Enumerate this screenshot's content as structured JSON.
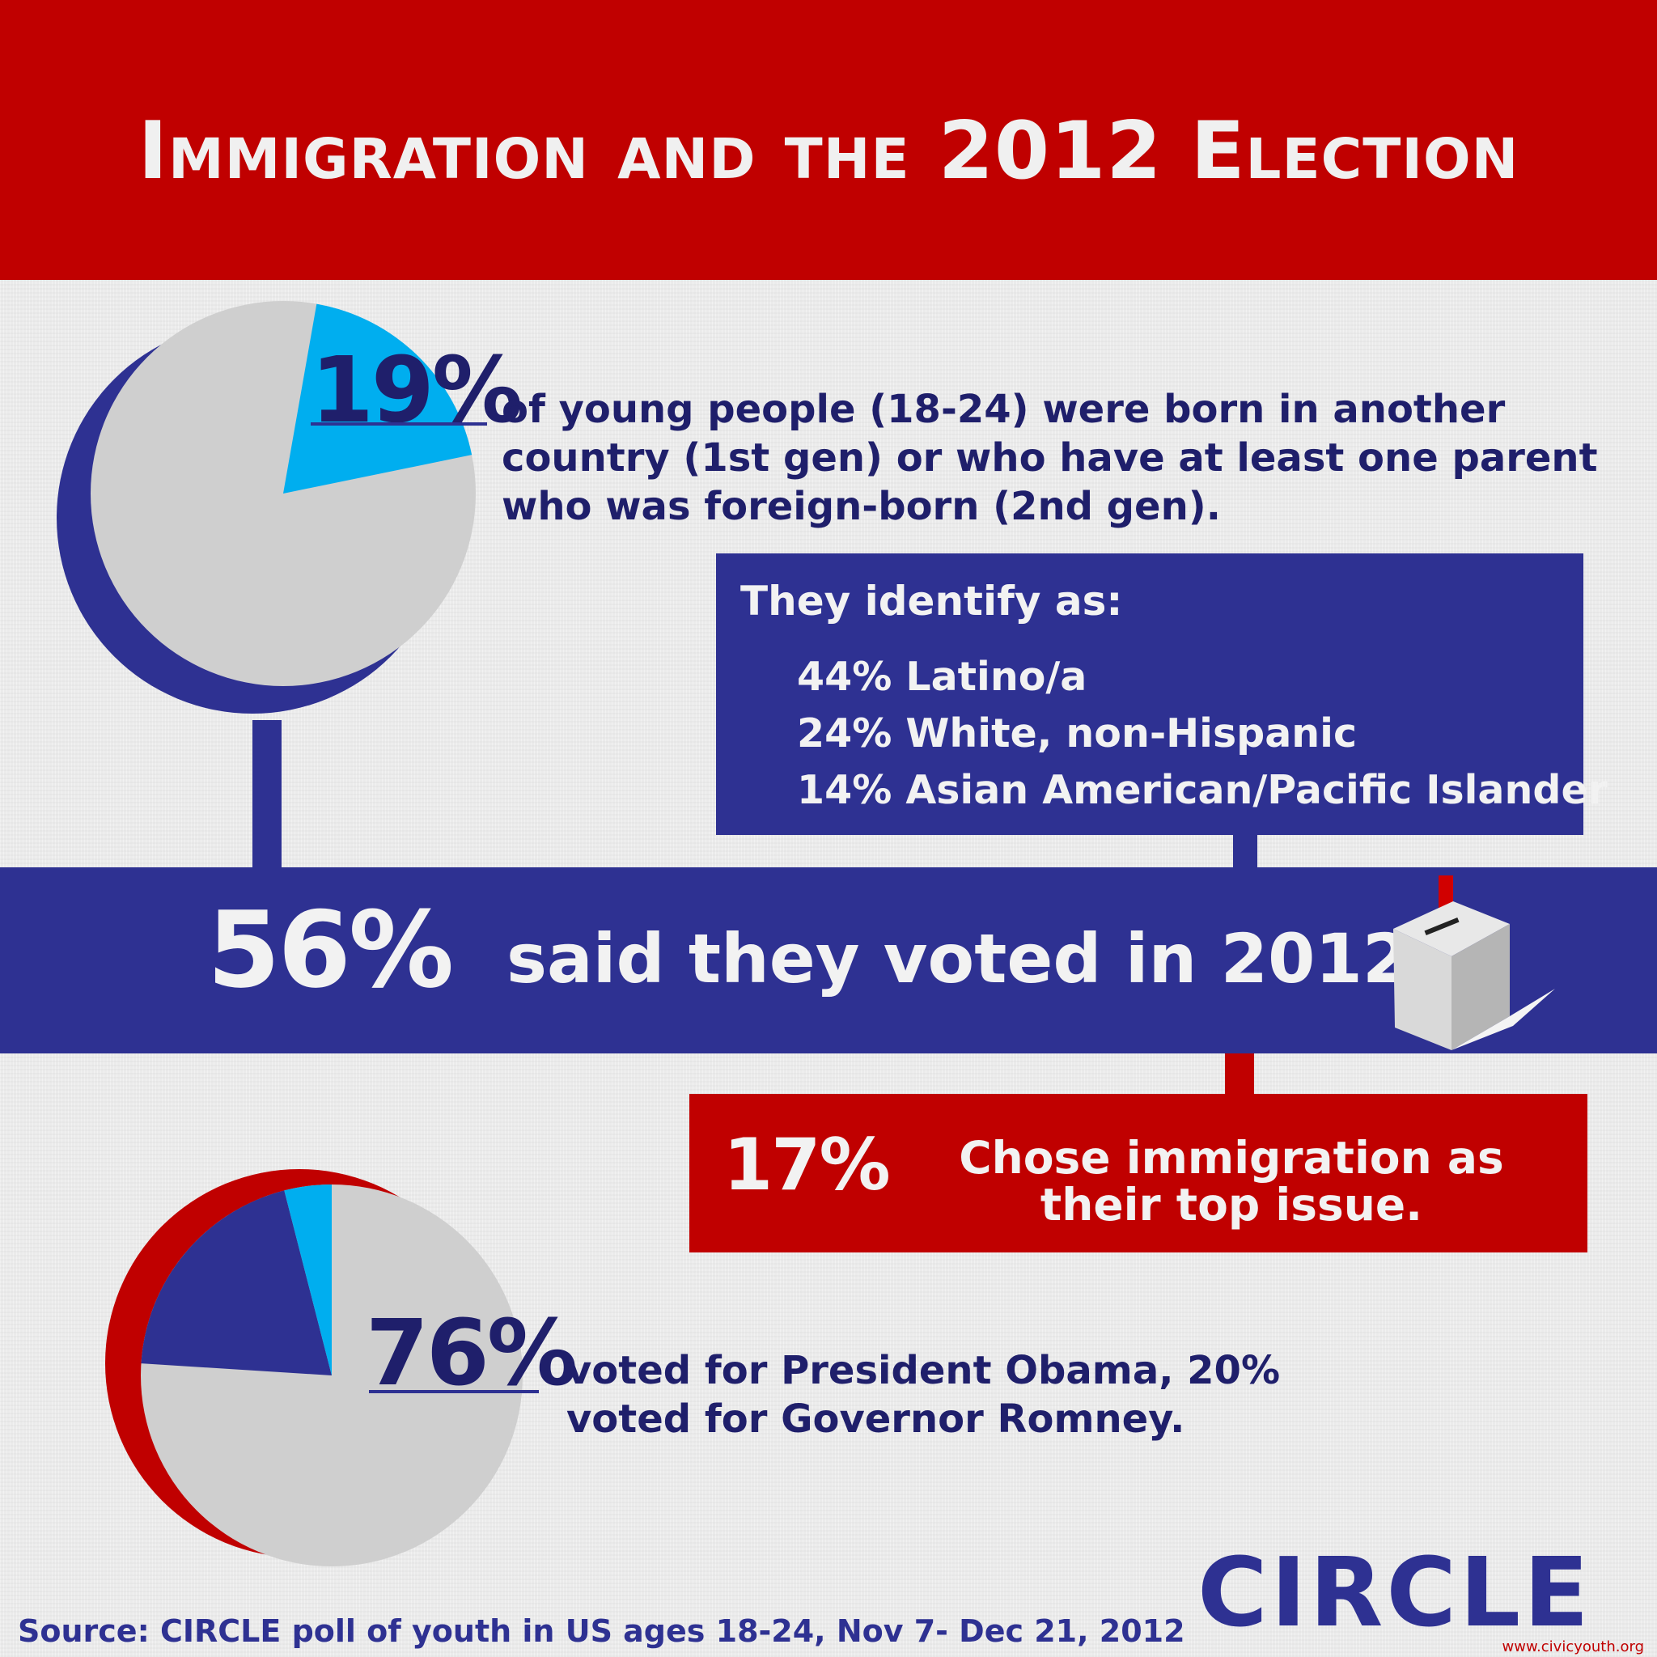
{
  "title": "Immigration and the 2012 Election",
  "colors": {
    "red": "#c00000",
    "navy": "#2e3192",
    "light_blue": "#00aeef",
    "pie_grey": "#cfcfcf",
    "text_navy": "#1f1f6b"
  },
  "section1": {
    "percent": "19%",
    "text": "of young people (18-24) were born in another country (1st gen) or who have at least one parent who was foreign-born (2nd gen).",
    "pie_fraction": 0.19
  },
  "identity": {
    "title": "They identify as:",
    "items": [
      "44% Latino/a",
      "24% White, non-Hispanic",
      "14% Asian American/Pacific Islander"
    ]
  },
  "voted": {
    "percent": "56%",
    "text": "said they voted in 2012.",
    "icon": "ballot-box-icon"
  },
  "immigration_issue": {
    "percent": "17%",
    "text": "Chose immigration as their top issue."
  },
  "section2": {
    "percent": "76%",
    "text": "voted for President Obama, 20% voted for Governor Romney.",
    "pie_obama_fraction": 0.76,
    "pie_romney_fraction": 0.2
  },
  "source": "Source: CIRCLE poll of youth in US ages 18-24, Nov 7- Dec 21, 2012",
  "logo": {
    "text": "CIRCLE",
    "url": "www.civicyouth.org"
  }
}
